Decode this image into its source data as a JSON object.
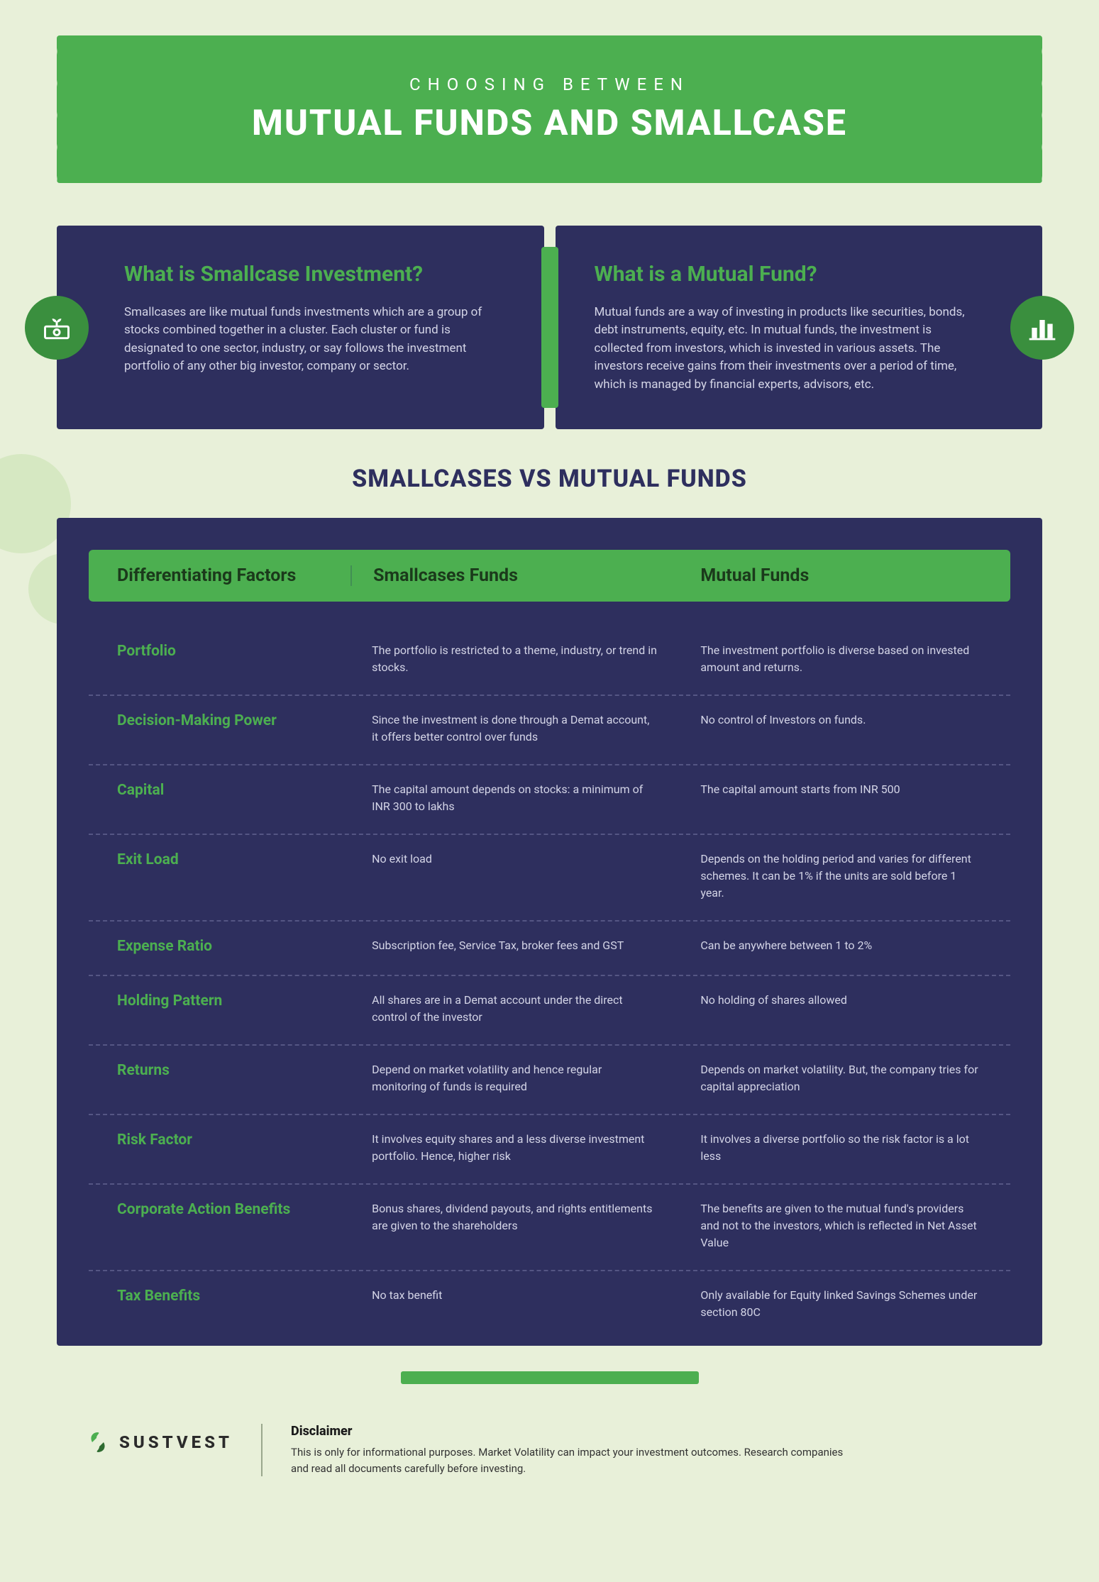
{
  "header": {
    "subtitle": "CHOOSING BETWEEN",
    "title": "MUTUAL FUNDS AND SMALLCASE"
  },
  "definitions": {
    "smallcase": {
      "heading": "What is Smallcase Investment?",
      "body": "Smallcases are like mutual funds investments which are a group of stocks combined together in a cluster. Each cluster or fund is designated to one sector, industry, or say follows the investment portfolio of any other big investor, company or sector.",
      "icon": "money-plant-icon"
    },
    "mutual": {
      "heading": "What is a Mutual Fund?",
      "body": "Mutual funds are a way of investing in products like securities, bonds, debt instruments, equity, etc. In mutual funds, the investment is collected from investors, which is invested in various assets. The investors receive gains from their investments over a period of time, which is managed by financial experts, advisors, etc.",
      "icon": "bar-chart-icon"
    }
  },
  "section_title": "SMALLCASES VS MUTUAL FUNDS",
  "table": {
    "headers": {
      "factor": "Differentiating Factors",
      "smallcase": "Smallcases Funds",
      "mutual": "Mutual Funds"
    },
    "rows": [
      {
        "factor": "Portfolio",
        "smallcase": "The portfolio is restricted to a theme, industry, or trend in stocks.",
        "mutual": "The investment portfolio is diverse based on invested amount and returns."
      },
      {
        "factor": "Decision-Making Power",
        "smallcase": "Since the investment is done through a Demat account, it offers better control over funds",
        "mutual": "No control of Investors on funds."
      },
      {
        "factor": "Capital",
        "smallcase": "The capital amount depends on stocks: a minimum of INR 300 to lakhs",
        "mutual": "The capital amount starts from INR 500"
      },
      {
        "factor": "Exit Load",
        "smallcase": "No exit load",
        "mutual": "Depends on the holding period and varies for different schemes. It can be 1% if the units are sold before 1 year."
      },
      {
        "factor": "Expense Ratio",
        "smallcase": "Subscription fee, Service Tax, broker fees and GST",
        "mutual": "Can be anywhere between 1 to 2%"
      },
      {
        "factor": "Holding Pattern",
        "smallcase": "All shares are in a Demat account under the direct control of the investor",
        "mutual": "No holding of shares allowed"
      },
      {
        "factor": "Returns",
        "smallcase": "Depend on market volatility and hence regular monitoring of funds is required",
        "mutual": "Depends on market volatility. But, the company tries for capital appreciation"
      },
      {
        "factor": "Risk Factor",
        "smallcase": "It involves equity shares and a less diverse investment portfolio. Hence, higher risk",
        "mutual": "It involves a diverse portfolio so the risk factor is a lot less"
      },
      {
        "factor": "Corporate Action Benefits",
        "smallcase": "Bonus shares, dividend payouts, and rights entitlements are given to the shareholders",
        "mutual": "The benefits are given to the mutual fund's providers and not to the investors, which is reflected in Net Asset Value"
      },
      {
        "factor": "Tax Benefits",
        "smallcase": "No tax benefit",
        "mutual": "Only available for Equity linked Savings Schemes under section 80C"
      }
    ]
  },
  "footer": {
    "brand": "SUSTVEST",
    "disclaimer_heading": "Disclaimer",
    "disclaimer_body": "This is only for informational purposes. Market Volatility can impact your investment outcomes. Research companies and read all documents carefully before investing."
  },
  "colors": {
    "page_bg": "#e8f0d9",
    "green": "#4caf50",
    "dark_green": "#3a8f3e",
    "navy": "#2e2f5e",
    "text_on_navy": "#d3d4e6",
    "divider": "#555684"
  }
}
